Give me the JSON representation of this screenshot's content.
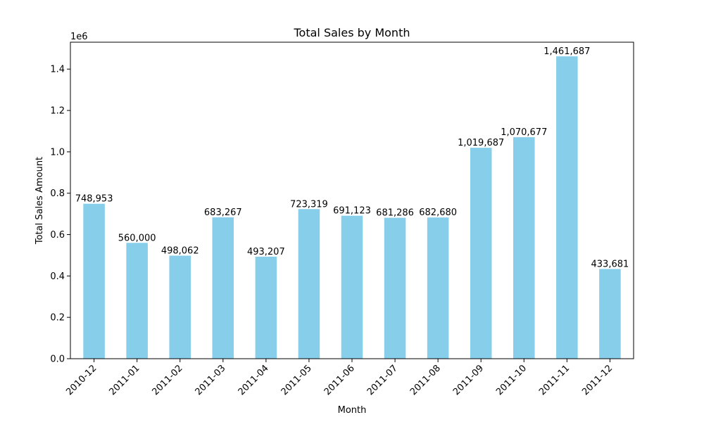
{
  "chart_data": {
    "type": "bar",
    "title": "Total Sales by Month",
    "xlabel": "Month",
    "ylabel": "Total Sales Amount",
    "y_offset_label": "1e6",
    "ylim": [
      0,
      1.53
    ],
    "y_ticks": [
      0.0,
      0.2,
      0.4,
      0.6,
      0.8,
      1.0,
      1.2,
      1.4
    ],
    "y_tick_labels": [
      "0.0",
      "0.2",
      "0.4",
      "0.6",
      "0.8",
      "1.0",
      "1.2",
      "1.4"
    ],
    "grid": false,
    "legend": "none",
    "bar_color": "#87CEEB",
    "categories": [
      "2010-12",
      "2011-01",
      "2011-02",
      "2011-03",
      "2011-04",
      "2011-05",
      "2011-06",
      "2011-07",
      "2011-08",
      "2011-09",
      "2011-10",
      "2011-11",
      "2011-12"
    ],
    "values": [
      748953,
      560000,
      498062,
      683267,
      493207,
      723319,
      691123,
      681286,
      682680,
      1019687,
      1070677,
      1461687,
      433681
    ],
    "data_labels": [
      "748,953",
      "560,000",
      "498,062",
      "683,267",
      "493,207",
      "723,319",
      "691,123",
      "681,286",
      "682,680",
      "1,019,687",
      "1,070,677",
      "1,461,687",
      "433,681"
    ]
  }
}
